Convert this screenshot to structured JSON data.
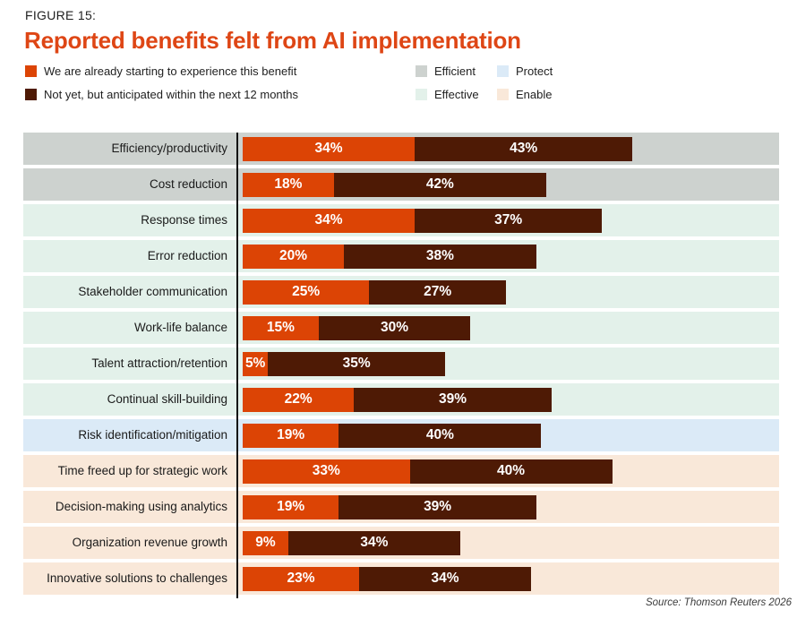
{
  "figure": {
    "label": "FIGURE 15:",
    "title": "Reported benefits felt from AI implementation",
    "title_color": "#DE4615"
  },
  "group_legend_order": [
    "Efficient",
    "Protect",
    "Effective",
    "Enable"
  ],
  "chart_data": {
    "type": "bar",
    "orientation": "horizontal",
    "stacked": true,
    "title": "Reported benefits felt from AI implementation",
    "value_suffix": "%",
    "xlim": [
      0,
      100
    ],
    "categories": [
      "Efficiency/productivity",
      "Cost reduction",
      "Response times",
      "Error reduction",
      "Stakeholder communication",
      "Work-life balance",
      "Talent attraction/retention",
      "Continual skill-building",
      "Risk identification/mitigation",
      "Time freed up for strategic work",
      "Decision-making using analytics",
      "Organization revenue growth",
      "Innovative solutions to challenges"
    ],
    "series": [
      {
        "name": "We are already starting to experience this benefit",
        "color": "#DC4405",
        "values": [
          34,
          18,
          34,
          20,
          25,
          15,
          5,
          22,
          19,
          33,
          19,
          9,
          23
        ]
      },
      {
        "name": "Not yet, but anticipated within the next 12 months",
        "color": "#4E1A05",
        "values": [
          43,
          42,
          37,
          38,
          27,
          30,
          35,
          39,
          40,
          40,
          39,
          34,
          34
        ]
      }
    ],
    "row_groups": [
      "Efficient",
      "Efficient",
      "Effective",
      "Effective",
      "Effective",
      "Effective",
      "Effective",
      "Effective",
      "Protect",
      "Enable",
      "Enable",
      "Enable",
      "Enable"
    ],
    "group_colors": {
      "Efficient": "#CDD2CF",
      "Effective": "#E3F1EA",
      "Protect": "#DBEAF7",
      "Enable": "#F9E8D9"
    },
    "legend_position": "top"
  },
  "source": "Source: Thomson Reuters 2026"
}
